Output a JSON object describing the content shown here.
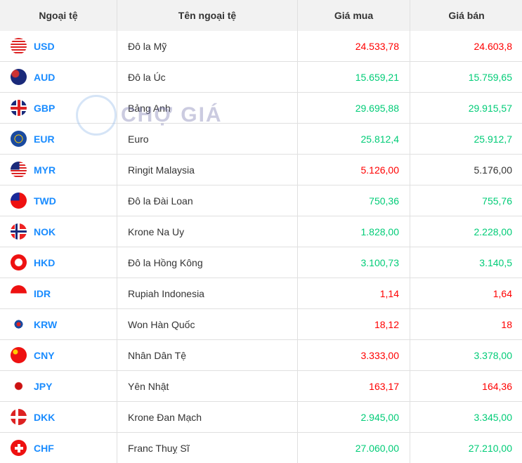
{
  "headers": [
    "Ngoại tệ",
    "Tên ngoại tệ",
    "Giá mua",
    "Giá bán"
  ],
  "watermark": "CHỢ GIÁ",
  "colors": {
    "up": "#00cc77",
    "down": "#ff0000",
    "neutral": "#333333",
    "code": "#1a8cff"
  },
  "rows": [
    {
      "code": "USD",
      "name": "Đô la Mỹ",
      "buy": "24.533,78",
      "buy_color": "red",
      "sell": "24.603,8",
      "sell_color": "red",
      "flag": "us-flag"
    },
    {
      "code": "AUD",
      "name": "Đô la Úc",
      "buy": "15.659,21",
      "buy_color": "green",
      "sell": "15.759,65",
      "sell_color": "green",
      "flag": "au-flag"
    },
    {
      "code": "GBP",
      "name": "Bảng Anh",
      "buy": "29.695,88",
      "buy_color": "green",
      "sell": "29.915,57",
      "sell_color": "green",
      "flag": "gb-flag"
    },
    {
      "code": "EUR",
      "name": "Euro",
      "buy": "25.812,4",
      "buy_color": "green",
      "sell": "25.912,7",
      "sell_color": "green",
      "flag": "eu-flag"
    },
    {
      "code": "MYR",
      "name": "Ringit Malaysia",
      "buy": "5.126,00",
      "buy_color": "red",
      "sell": "5.176,00",
      "sell_color": "dark",
      "flag": "my-flag"
    },
    {
      "code": "TWD",
      "name": "Đô la Đài Loan",
      "buy": "750,36",
      "buy_color": "green",
      "sell": "755,76",
      "sell_color": "green",
      "flag": "tw-flag"
    },
    {
      "code": "NOK",
      "name": "Krone Na Uy",
      "buy": "1.828,00",
      "buy_color": "green",
      "sell": "2.228,00",
      "sell_color": "green",
      "flag": "no-flag"
    },
    {
      "code": "HKD",
      "name": "Đô la Hồng Kông",
      "buy": "3.100,73",
      "buy_color": "green",
      "sell": "3.140,5",
      "sell_color": "green",
      "flag": "hk-flag"
    },
    {
      "code": "IDR",
      "name": "Rupiah Indonesia",
      "buy": "1,14",
      "buy_color": "red",
      "sell": "1,64",
      "sell_color": "red",
      "flag": "id-flag"
    },
    {
      "code": "KRW",
      "name": "Won Hàn Quốc",
      "buy": "18,12",
      "buy_color": "red",
      "sell": "18",
      "sell_color": "red",
      "flag": "kr-flag"
    },
    {
      "code": "CNY",
      "name": "Nhân Dân Tệ",
      "buy": "3.333,00",
      "buy_color": "red",
      "sell": "3.378,00",
      "sell_color": "green",
      "flag": "cn-flag"
    },
    {
      "code": "JPY",
      "name": "Yên Nhật",
      "buy": "163,17",
      "buy_color": "red",
      "sell": "164,36",
      "sell_color": "red",
      "flag": "jp-flag"
    },
    {
      "code": "DKK",
      "name": "Krone Đan Mạch",
      "buy": "2.945,00",
      "buy_color": "green",
      "sell": "3.345,00",
      "sell_color": "green",
      "flag": "dk-flag"
    },
    {
      "code": "CHF",
      "name": "Franc Thuỵ Sĩ",
      "buy": "27.060,00",
      "buy_color": "green",
      "sell": "27.210,00",
      "sell_color": "green",
      "flag": "ch-flag"
    }
  ]
}
